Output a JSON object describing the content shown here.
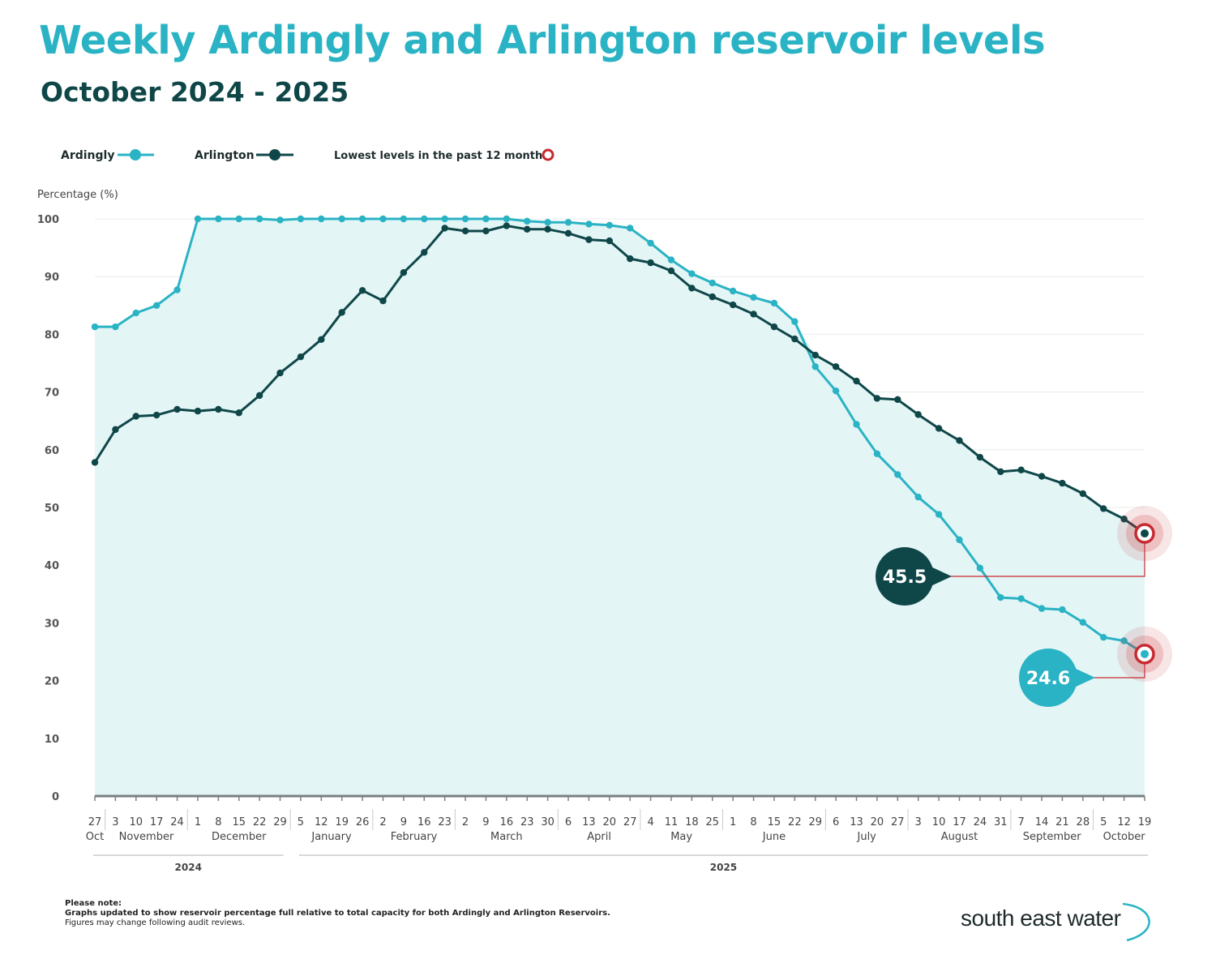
{
  "header": {
    "title": "Weekly Ardingly and Arlington reservoir levels",
    "subtitle": "October 2024 - 2025"
  },
  "legend": {
    "ardingly_label": "Ardingly",
    "arlington_label": "Arlington",
    "lowest_label": "Lowest levels in the past 12 months"
  },
  "notes": {
    "heading": "Please note:",
    "line1": "Graphs updated to show reservoir percentage full relative to total capacity for both Ardingly and Arlington Reservoirs.",
    "line2": "Figures may change following audit reviews."
  },
  "logo": {
    "text": "south east water"
  },
  "colors": {
    "ardingly": "#2ab3c4",
    "arlington": "#0f4749",
    "fill": "#e4f5f6",
    "lowest_marker": "#c62b31"
  },
  "chart_data": {
    "type": "line",
    "ylabel": "Percentage (%)",
    "ylim": [
      0,
      100
    ],
    "yticks": [
      0,
      10,
      20,
      30,
      40,
      50,
      60,
      70,
      80,
      90,
      100
    ],
    "grid": true,
    "legend_position": "top-left",
    "x_day_labels": [
      "27",
      "3",
      "10",
      "17",
      "24",
      "1",
      "8",
      "15",
      "22",
      "29",
      "5",
      "12",
      "19",
      "26",
      "2",
      "9",
      "16",
      "23",
      "2",
      "9",
      "16",
      "23",
      "30",
      "6",
      "13",
      "20",
      "27",
      "4",
      "11",
      "18",
      "25",
      "1",
      "8",
      "15",
      "22",
      "29",
      "6",
      "13",
      "20",
      "27",
      "3",
      "10",
      "17",
      "24",
      "31",
      "7",
      "14",
      "21",
      "28",
      "5",
      "12",
      "19"
    ],
    "months": [
      {
        "label": "Oct",
        "start": 0,
        "end": 0
      },
      {
        "label": "November",
        "start": 1,
        "end": 4
      },
      {
        "label": "December",
        "start": 5,
        "end": 9
      },
      {
        "label": "January",
        "start": 10,
        "end": 13
      },
      {
        "label": "February",
        "start": 14,
        "end": 17
      },
      {
        "label": "March",
        "start": 18,
        "end": 22
      },
      {
        "label": "April",
        "start": 23,
        "end": 26
      },
      {
        "label": "May",
        "start": 27,
        "end": 30
      },
      {
        "label": "June",
        "start": 31,
        "end": 35
      },
      {
        "label": "July",
        "start": 36,
        "end": 39
      },
      {
        "label": "August",
        "start": 40,
        "end": 44
      },
      {
        "label": "September",
        "start": 45,
        "end": 48
      },
      {
        "label": "October",
        "start": 49,
        "end": 51
      }
    ],
    "years": [
      {
        "label": "2024",
        "start": 0,
        "end": 9
      },
      {
        "label": "2025",
        "start": 10,
        "end": 51
      }
    ],
    "series": [
      {
        "name": "Ardingly",
        "values": [
          81.3,
          81.3,
          83.7,
          85.0,
          87.7,
          100,
          100,
          100,
          100,
          99.8,
          100,
          100,
          100,
          100,
          100,
          100,
          100,
          100,
          100,
          100,
          100,
          99.6,
          99.4,
          99.4,
          99.1,
          98.9,
          98.4,
          95.8,
          92.9,
          90.5,
          88.9,
          87.5,
          86.4,
          85.4,
          82.2,
          74.4,
          70.2,
          64.4,
          59.3,
          55.7,
          51.8,
          48.8,
          44.4,
          39.5,
          34.4,
          34.2,
          32.5,
          32.3,
          30.1,
          27.5,
          26.9,
          24.6
        ]
      },
      {
        "name": "Arlington",
        "values": [
          57.8,
          63.5,
          65.8,
          66.0,
          67.0,
          66.7,
          67.0,
          66.4,
          69.4,
          73.3,
          76.1,
          79.1,
          83.8,
          87.6,
          85.8,
          90.7,
          94.2,
          98.4,
          97.9,
          97.9,
          98.8,
          98.2,
          98.2,
          97.5,
          96.4,
          96.2,
          93.1,
          92.4,
          91.0,
          88.0,
          86.5,
          85.1,
          83.5,
          81.3,
          79.2,
          76.4,
          74.4,
          71.9,
          68.9,
          68.7,
          66.1,
          63.7,
          61.6,
          58.7,
          56.2,
          56.5,
          55.4,
          54.2,
          52.4,
          49.8,
          48.0,
          45.5
        ]
      }
    ],
    "annotations": [
      {
        "series": "Arlington",
        "index": 51,
        "value": 45.5,
        "label": "45.5"
      },
      {
        "series": "Ardingly",
        "index": 51,
        "value": 24.6,
        "label": "24.6"
      }
    ]
  }
}
